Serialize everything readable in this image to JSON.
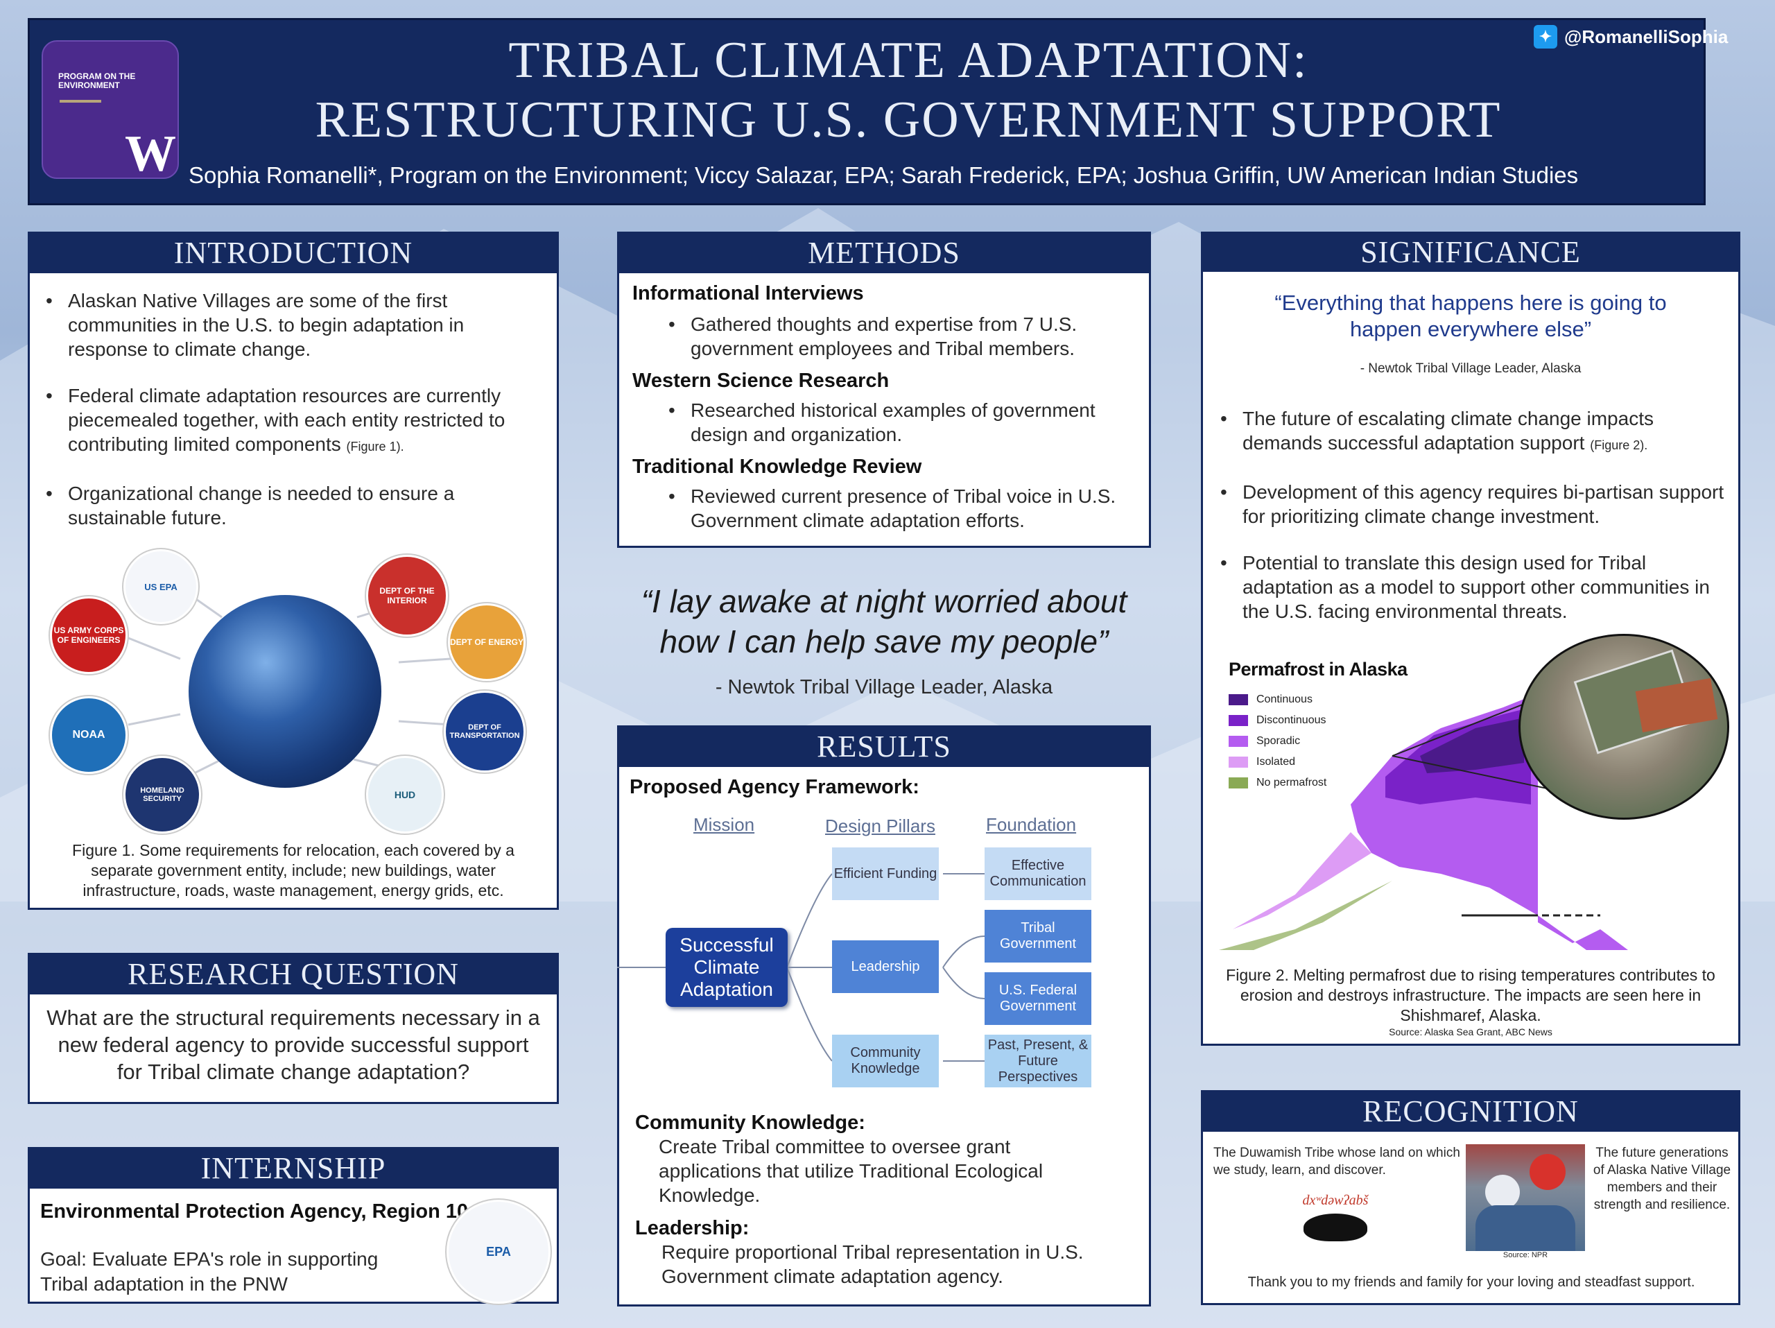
{
  "header": {
    "title_line1": "TRIBAL CLIMATE ADAPTATION:",
    "title_line2": "RESTRUCTURING U.S. GOVERNMENT SUPPORT",
    "authors": "Sophia Romanelli*, Program on the Environment; Viccy Salazar, EPA; Sarah Frederick, EPA; Joshua Griffin, UW American Indian Studies",
    "twitter": "@RomanelliSophia",
    "logo_text": "PROGRAM ON THE ENVIRONMENT",
    "logo_letter": "W"
  },
  "introduction": {
    "heading": "INTRODUCTION",
    "bullets": [
      "Alaskan Native Villages are some of the first communities in the U.S. to begin adaptation in response to climate change.",
      "Federal climate adaptation resources are currently piecemealed together, with each entity restricted to contributing limited components",
      "Organizational change is needed to ensure a sustainable future."
    ],
    "figure_ref": "(Figure 1).",
    "seals": [
      "US ARMY CORPS OF ENGINEERS",
      "US EPA",
      "DEPT OF THE INTERIOR",
      "DEPT OF ENERGY",
      "NOAA",
      "DEPT OF TRANSPORTATION",
      "HOMELAND SECURITY",
      "HUD"
    ],
    "caption": "Figure 1. Some requirements for relocation, each covered by a separate government entity, include; new buildings, water infrastructure, roads, waste management, energy grids, etc."
  },
  "research_question": {
    "heading": "RESEARCH QUESTION",
    "text": "What are the structural requirements necessary in a new federal agency to provide successful support for Tribal climate change adaptation?"
  },
  "internship": {
    "heading": "INTERNSHIP",
    "org": "Environmental Protection Agency, Region 10",
    "goal": "Goal: Evaluate EPA's role in supporting Tribal adaptation in the PNW"
  },
  "methods": {
    "heading": "METHODS",
    "sections": [
      {
        "title": "Informational Interviews",
        "text": "Gathered thoughts and expertise from 7 U.S. government employees and Tribal members."
      },
      {
        "title": "Western Science Research",
        "text": "Researched historical examples of government design and organization."
      },
      {
        "title": "Traditional Knowledge Review",
        "text": "Reviewed current presence of Tribal voice in U.S. Government climate adaptation efforts."
      }
    ]
  },
  "quote_center": {
    "text_line1": "“I lay awake at night worried about",
    "text_line2": "how I can help save my people”",
    "attribution": "- Newtok Tribal Village Leader, Alaska"
  },
  "results": {
    "heading": "RESULTS",
    "framework_title": "Proposed Agency Framework:",
    "col_labels": [
      "Mission",
      "Design Pillars",
      "Foundation"
    ],
    "mission": "Successful Climate Adaptation",
    "pillars": [
      "Efficient Funding",
      "Leadership",
      "Community Knowledge"
    ],
    "foundations": [
      "Effective Communication",
      "Tribal Government",
      "U.S. Federal Government",
      "Past, Present, & Future Perspectives"
    ],
    "ck_title": "Community Knowledge:",
    "ck_text": "Create Tribal committee to oversee grant applications that utilize Traditional Ecological Knowledge.",
    "lead_title": "Leadership:",
    "lead_text": "Require proportional Tribal representation in U.S. Government climate adaptation agency."
  },
  "significance": {
    "heading": "SIGNIFICANCE",
    "quote": "“Everything that happens here is going to happen everywhere else”",
    "attribution": "- Newtok Tribal Village Leader, Alaska",
    "bullets": [
      "The future of escalating climate change impacts demands successful adaptation support",
      "Development of this agency requires bi-partisan support for prioritizing climate change investment.",
      "Potential to translate this design used for Tribal adaptation as a model to support other communities in the U.S. facing environmental threats."
    ],
    "figure_ref": "(Figure 2).",
    "map_title": "Permafrost in Alaska",
    "legend": [
      {
        "label": "Continuous",
        "color": "#4b1a8a"
      },
      {
        "label": "Discontinuous",
        "color": "#7a22c8"
      },
      {
        "label": "Sporadic",
        "color": "#b45cf0"
      },
      {
        "label": "Isolated",
        "color": "#dd9cf5"
      },
      {
        "label": "No permafrost",
        "color": "#8aaa55"
      }
    ],
    "caption": "Figure 2. Melting permafrost due to rising temperatures contributes to erosion and destroys infrastructure. The impacts are seen here in Shishmaref, Alaska.",
    "source": "Source: Alaska Sea Grant, ABC News"
  },
  "recognition": {
    "heading": "RECOGNITION",
    "left_text": "The Duwamish Tribe whose land on which we study, learn, and discover.",
    "right_text": "The future generations of Alaska Native Village members and their strength and resilience.",
    "thanks": "Thank you to my friends and family for your loving and steadfast support.",
    "tribe_logo_text": "dxʷdəwʔabš",
    "photo_source": "Source: NPR"
  }
}
